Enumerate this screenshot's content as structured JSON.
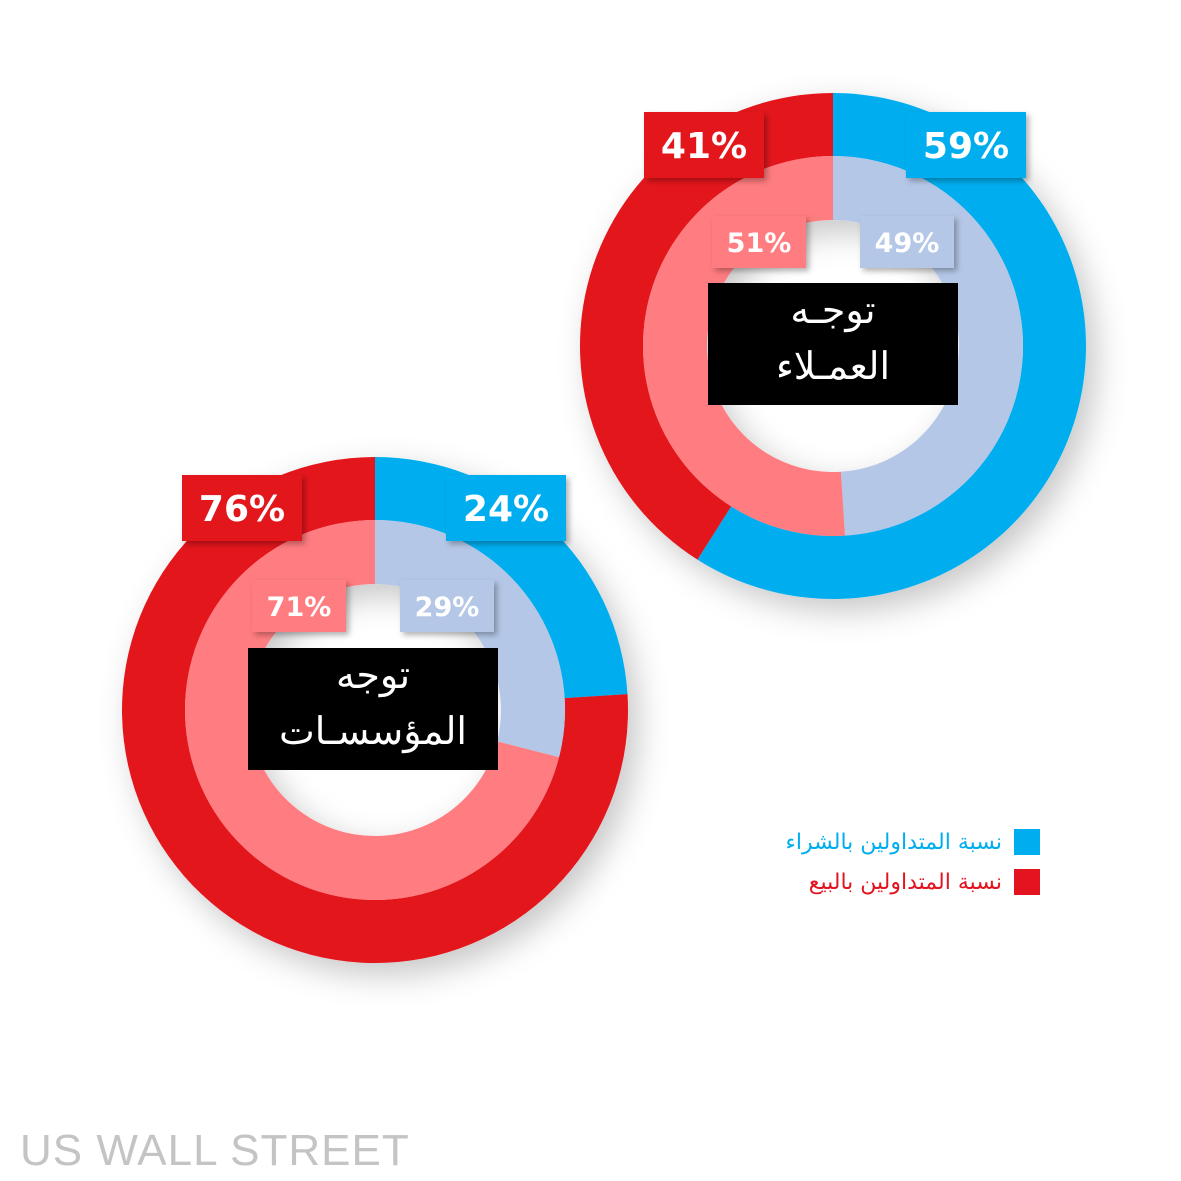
{
  "chart_data": [
    {
      "type": "donut",
      "title": "توجه العملاء",
      "title_lines": [
        "توجـه",
        "العمـلاء"
      ],
      "outer": [
        {
          "name": "نسبة المتداولين بالشراء",
          "value": 59,
          "label": "59%"
        },
        {
          "name": "نسبة المتداولين بالبيع",
          "value": 41,
          "label": "41%"
        }
      ],
      "inner": [
        {
          "value": 49,
          "label": "49%"
        },
        {
          "value": 51,
          "label": "51%"
        }
      ]
    },
    {
      "type": "donut",
      "title": "توجه المؤسسات",
      "title_lines": [
        "توجه",
        "المؤسسـات"
      ],
      "outer": [
        {
          "name": "نسبة المتداولين بالشراء",
          "value": 24,
          "label": "24%"
        },
        {
          "name": "نسبة المتداولين بالبيع",
          "value": 76,
          "label": "76%"
        }
      ],
      "inner": [
        {
          "value": 29,
          "label": "29%"
        },
        {
          "value": 71,
          "label": "71%"
        }
      ]
    }
  ],
  "colors": {
    "buy_outer": "#00aeef",
    "buy_inner": "#b4c7e7",
    "sell_outer": "#e3141f",
    "sell_inner": "#ff7c80",
    "center_box": "#000000"
  },
  "legend": {
    "buy_label": "نسبة المتداولين بالشراء",
    "sell_label": "نسبة المتداولين بالبيع",
    "buy_color": "#00aeef",
    "sell_color": "#e3141f"
  },
  "watermark": "US WALL STREET"
}
